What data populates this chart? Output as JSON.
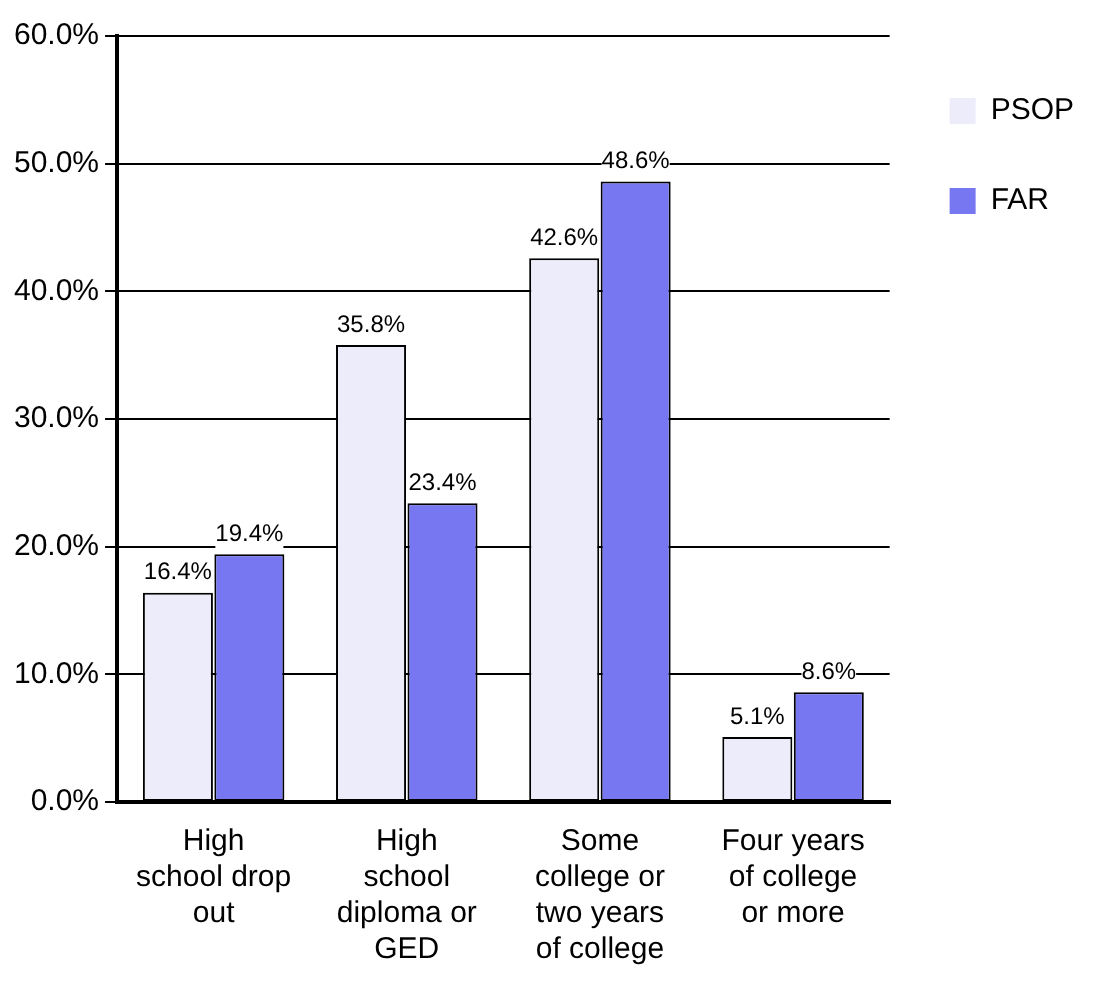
{
  "chart_data": {
    "type": "bar",
    "categories": [
      "High school drop out",
      "High school diploma or GED",
      "Some college or two years of college",
      "Four years of college or more"
    ],
    "series": [
      {
        "name": "PSOP",
        "color": "#ececfa",
        "values": [
          16.4,
          35.8,
          42.6,
          5.1
        ],
        "value_labels": [
          "16.4%",
          "35.8%",
          "42.6%",
          "5.1%"
        ]
      },
      {
        "name": "FAR",
        "color": "#7777f2",
        "values": [
          19.4,
          23.4,
          48.6,
          8.6
        ],
        "value_labels": [
          "19.4%",
          "23.4%",
          "48.6%",
          "8.6%"
        ]
      }
    ],
    "ylim": [
      0,
      60
    ],
    "yticks": [
      {
        "value": 0,
        "label": "0.0%"
      },
      {
        "value": 10,
        "label": "10.0%"
      },
      {
        "value": 20,
        "label": "20.0%"
      },
      {
        "value": 30,
        "label": "30.0%"
      },
      {
        "value": 40,
        "label": "40.0%"
      },
      {
        "value": 50,
        "label": "50.0%"
      },
      {
        "value": 60,
        "label": "60.0%"
      }
    ],
    "grid": "y",
    "legend": "top right"
  }
}
